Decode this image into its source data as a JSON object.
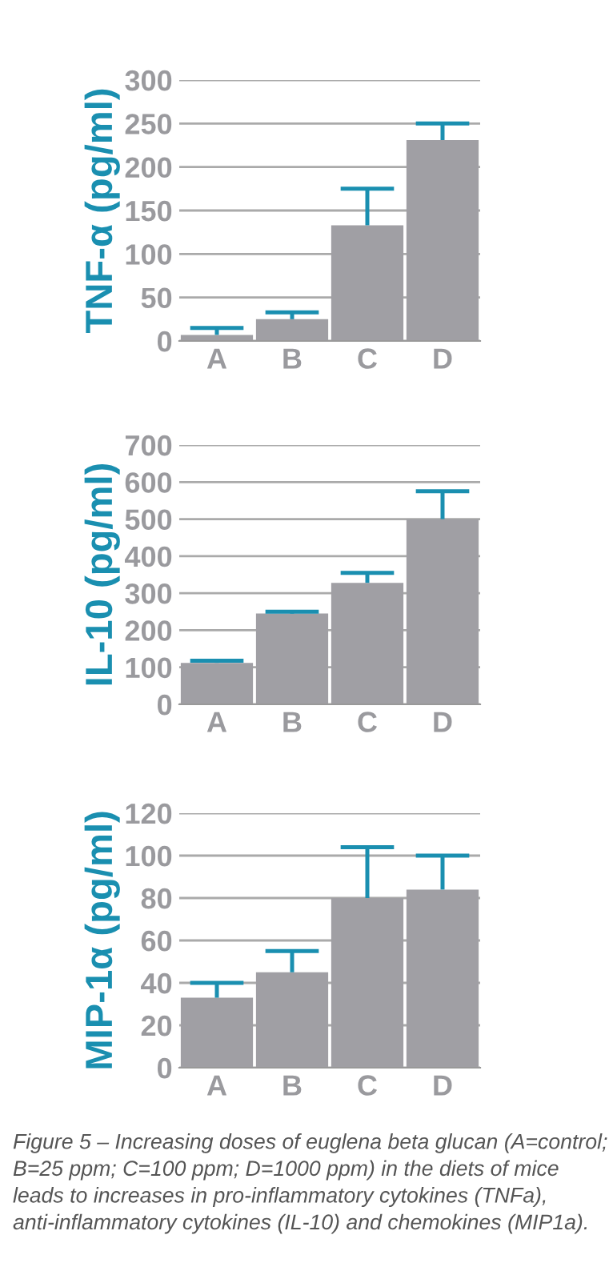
{
  "chart_data": [
    {
      "type": "bar",
      "ylabel": "TNF-α (pg/ml)",
      "categories": [
        "A",
        "B",
        "C",
        "D"
      ],
      "values": [
        7,
        25,
        133,
        231
      ],
      "color": "#a09fa4",
      "errors": [
        [
          7,
          15
        ],
        [
          25,
          33
        ],
        [
          133,
          175
        ],
        [
          231,
          250
        ]
      ],
      "ylim": [
        0,
        300
      ],
      "yticks": [
        0,
        50,
        100,
        150,
        200,
        250,
        300
      ],
      "grid": "y"
    },
    {
      "type": "bar",
      "ylabel": "IL-10 (pg/ml)",
      "categories": [
        "A",
        "B",
        "C",
        "D"
      ],
      "values": [
        112,
        245,
        328,
        500
      ],
      "color": "#a09fa4",
      "errors": [
        [
          112,
          118
        ],
        [
          245,
          250
        ],
        [
          328,
          355
        ],
        [
          500,
          575
        ]
      ],
      "ylim": [
        0,
        700
      ],
      "yticks": [
        0,
        100,
        200,
        300,
        400,
        500,
        600,
        700
      ],
      "grid": "y"
    },
    {
      "type": "bar",
      "ylabel": "MIP-1α (pg/ml)",
      "categories": [
        "A",
        "B",
        "C",
        "D"
      ],
      "values": [
        33,
        45,
        80,
        84
      ],
      "color": "#a09fa4",
      "errors": [
        [
          33,
          40
        ],
        [
          45,
          55
        ],
        [
          80,
          104
        ],
        [
          84,
          100
        ]
      ],
      "ylim": [
        0,
        120
      ],
      "yticks": [
        0,
        20,
        40,
        60,
        80,
        100,
        120
      ],
      "grid": "y",
      "annotations": [
        "Figure 5 – Increasing doses of euglena beta glucan (A=control; B=25 ppm; C=100 ppm; D=1000 ppm) in the diets of mice leads to increases in pro-inflammatory cytokines (TNFa), anti-inflammatory cytokines (IL-10) and chemokines (MIP1a)."
      ]
    }
  ]
}
